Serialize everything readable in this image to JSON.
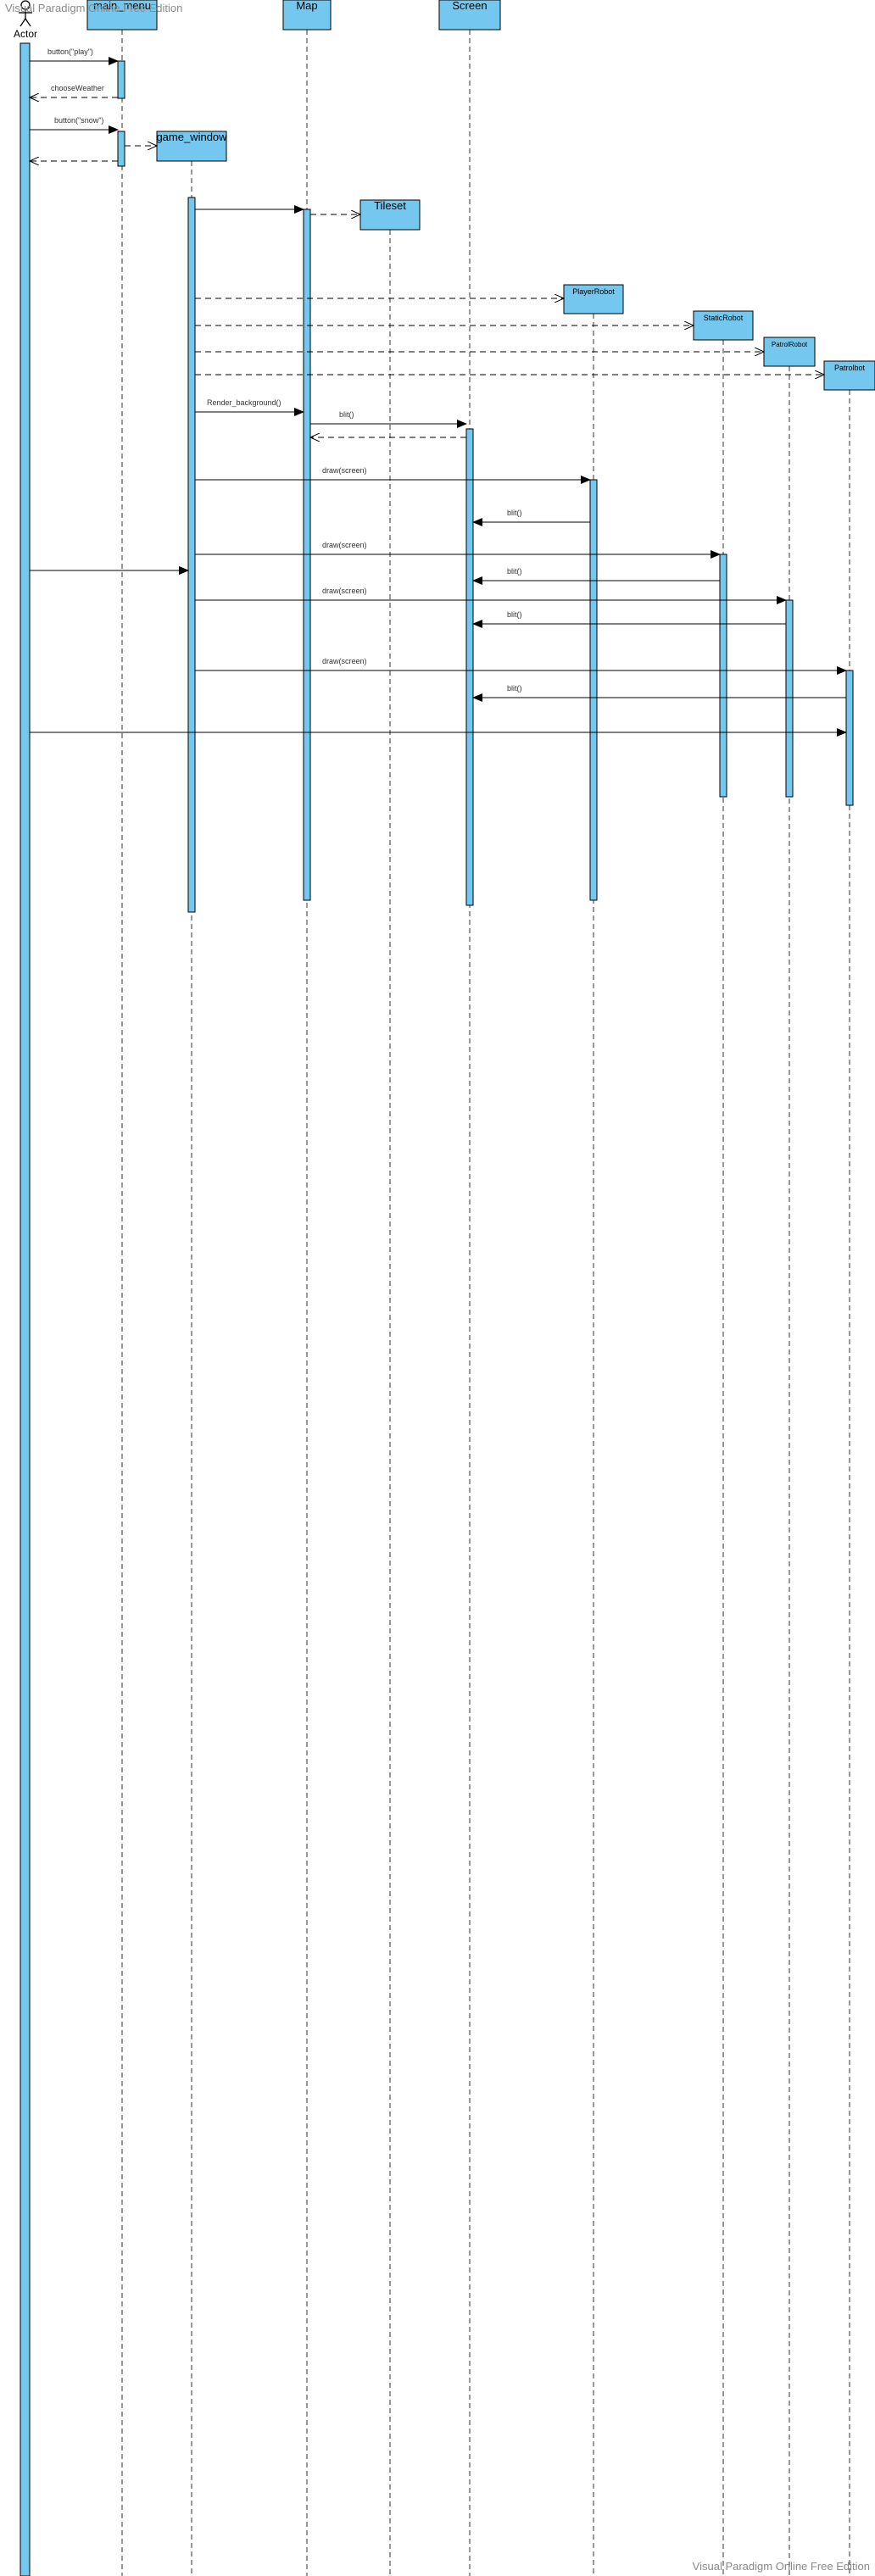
{
  "watermark": {
    "top": "Visual Paradigm Online Free Edition",
    "bottom": "Visual Paradigm Online Free Edition"
  },
  "colors": {
    "box_fill": "#74c8ef",
    "stroke": "#000000",
    "lifeline": "#333333",
    "label": "#333333"
  },
  "actor": {
    "name": "Actor",
    "icon": "stick-figure-icon"
  },
  "participants": [
    {
      "id": "main_menu",
      "label": "main_menu"
    },
    {
      "id": "game_window",
      "label": "game_window"
    },
    {
      "id": "map",
      "label": "Map"
    },
    {
      "id": "tileset",
      "label": "Tileset"
    },
    {
      "id": "screen",
      "label": "Screen"
    },
    {
      "id": "playerrobot",
      "label": "PlayerRobot"
    },
    {
      "id": "staticrobot",
      "label": "StaticRobot"
    },
    {
      "id": "patrolrobot",
      "label": "PatrolRobot"
    },
    {
      "id": "patrolbot",
      "label": "Patrolbot"
    }
  ],
  "messages": [
    {
      "label": "button(\"play\")"
    },
    {
      "label": "chooseWeather"
    },
    {
      "label": "button(\"snow\")"
    },
    {
      "label": ""
    },
    {
      "label": ""
    },
    {
      "label": ""
    },
    {
      "label": ""
    },
    {
      "label": ""
    },
    {
      "label": ""
    },
    {
      "label": ""
    },
    {
      "label": ""
    },
    {
      "label": ""
    },
    {
      "label": "Render_background()"
    },
    {
      "label": "blit()"
    },
    {
      "label": ""
    },
    {
      "label": "draw(screen)"
    },
    {
      "label": "blit()"
    },
    {
      "label": "draw(screen)"
    },
    {
      "label": "blit()"
    },
    {
      "label": ""
    },
    {
      "label": "draw(screen)"
    },
    {
      "label": "blit()"
    },
    {
      "label": "draw(screen)"
    },
    {
      "label": "blit()"
    },
    {
      "label": ""
    }
  ]
}
